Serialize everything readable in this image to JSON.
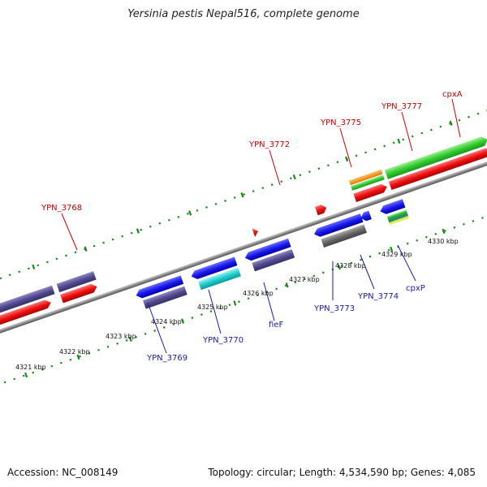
{
  "title": "Yersinia pestis Nepal516, complete genome",
  "footer": {
    "accession": "Accession: NC_008149",
    "stats": "Topology: circular; Length: 4,534,590 bp; Genes: 4,085"
  },
  "colors": {
    "backbone": "#8a8a8a",
    "tick": "#1a8a1a",
    "label_red": "#cc0000",
    "label_blue": "#1a1aa8"
  },
  "kbp_labels": [
    "4321 kbp",
    "4322 kbp",
    "4323 kbp",
    "4324 kbp",
    "4325 kbp",
    "4326 kbp",
    "4327 kbp",
    "4328 kbp",
    "4329 kbp",
    "4330 kbp"
  ],
  "gene_labels": [
    {
      "text": "YPN_3768",
      "strand": "top"
    },
    {
      "text": "YPN_3772",
      "strand": "top"
    },
    {
      "text": "YPN_3775",
      "strand": "top"
    },
    {
      "text": "YPN_3777",
      "strand": "top"
    },
    {
      "text": "cpxA",
      "strand": "top"
    },
    {
      "text": "YPN_3769",
      "strand": "bottom"
    },
    {
      "text": "YPN_3770",
      "strand": "bottom"
    },
    {
      "text": "fieF",
      "strand": "bottom"
    },
    {
      "text": "YPN_3773",
      "strand": "bottom"
    },
    {
      "text": "YPN_3774",
      "strand": "bottom"
    },
    {
      "text": "cpxP",
      "strand": "bottom"
    }
  ]
}
